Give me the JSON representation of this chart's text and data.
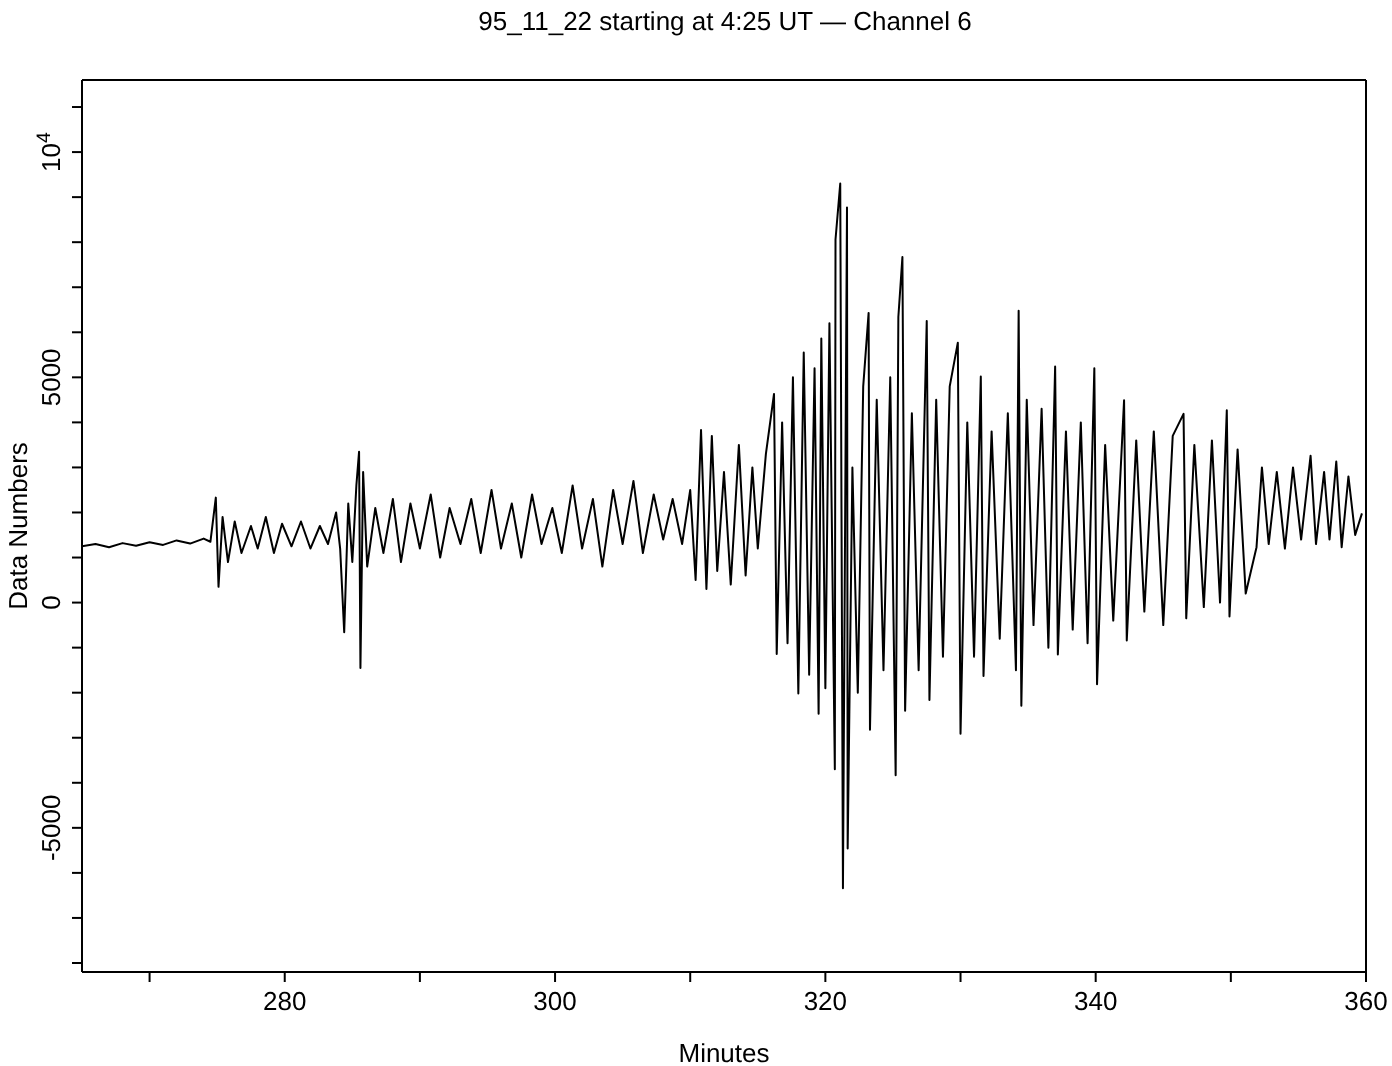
{
  "chart_data": {
    "type": "line",
    "title": "95_11_22 starting at 4:25 UT — Channel 6",
    "xlabel": "Minutes",
    "ylabel": "Data Numbers",
    "xlim": [
      265,
      360
    ],
    "xticks": [
      {
        "value": 270,
        "label": null
      },
      280,
      {
        "value": 290,
        "label": null
      },
      300,
      {
        "value": 310,
        "label": null
      },
      320,
      {
        "value": 330,
        "label": null
      },
      340,
      {
        "value": 350,
        "label": null
      },
      360
    ],
    "ylim": [
      -8200,
      11600
    ],
    "yticks": [
      {
        "value": -8000,
        "label": null
      },
      {
        "value": -7000,
        "label": null
      },
      {
        "value": -6000,
        "label": null
      },
      -5000,
      {
        "value": -4000,
        "label": null
      },
      {
        "value": -3000,
        "label": null
      },
      {
        "value": -2000,
        "label": null
      },
      {
        "value": -1000,
        "label": null
      },
      0,
      {
        "value": 1000,
        "label": null
      },
      {
        "value": 2000,
        "label": null
      },
      {
        "value": 3000,
        "label": null
      },
      {
        "value": 4000,
        "label": null
      },
      5000,
      {
        "value": 6000,
        "label": null
      },
      {
        "value": 7000,
        "label": null
      },
      {
        "value": 8000,
        "label": null
      },
      {
        "value": 9000,
        "label": null
      },
      {
        "value": 10000,
        "label": "10$^{4}$"
      },
      {
        "value": 11000,
        "label": null
      }
    ],
    "legend": false,
    "marker": "none",
    "line_style": "solid",
    "series": [
      {
        "color": "#000000",
        "x": [
          265,
          266,
          267,
          268,
          269,
          270,
          271,
          272,
          273,
          274,
          274.5,
          274.9,
          275.1,
          275.4,
          275.8,
          276.3,
          276.8,
          277.5,
          278,
          278.6,
          279.2,
          279.8,
          280.5,
          281.2,
          281.9,
          282.6,
          283.2,
          283.8,
          284.1,
          284.4,
          284.7,
          285,
          285.3,
          285.5,
          285.6,
          285.8,
          286.1,
          286.7,
          287.3,
          288,
          288.6,
          289.3,
          290,
          290.8,
          291.5,
          292.2,
          293,
          293.8,
          294.5,
          295.3,
          296,
          296.8,
          297.5,
          298.3,
          299,
          299.8,
          300.5,
          301.3,
          302,
          302.8,
          303.5,
          304.3,
          305,
          305.8,
          306.5,
          307.3,
          308,
          308.7,
          309.4,
          310,
          310.4,
          310.8,
          311.2,
          311.6,
          312,
          312.5,
          313,
          313.6,
          314.1,
          314.6,
          315,
          315.6,
          316.2,
          316.4,
          316.8,
          317.2,
          317.6,
          318,
          318.4,
          318.8,
          319.2,
          319.5,
          319.7,
          320,
          320.3,
          320.7,
          320.75,
          321.1,
          321.3,
          321.6,
          321.65,
          322,
          322.4,
          322.8,
          323.2,
          323.3,
          323.8,
          324.3,
          324.8,
          325.2,
          325.4,
          325.7,
          325.9,
          326.4,
          326.9,
          327.5,
          327.7,
          328.2,
          328.7,
          329.2,
          329.8,
          330,
          330.5,
          331,
          331.5,
          331.7,
          332.3,
          332.9,
          333.5,
          334.1,
          334.3,
          334.5,
          334.9,
          335.4,
          336,
          336.5,
          337,
          337.2,
          337.8,
          338.3,
          338.9,
          339.4,
          339.9,
          340.1,
          340.7,
          341.3,
          342.1,
          342.3,
          343,
          343.6,
          344.3,
          345,
          345.7,
          346.5,
          346.7,
          347.3,
          348,
          348.6,
          349.2,
          349.7,
          349.9,
          350.5,
          351.1,
          351.9,
          352.3,
          352.8,
          353.4,
          354,
          354.6,
          355.2,
          355.9,
          356.3,
          356.9,
          357.3,
          357.8,
          358.2,
          358.7,
          359.2,
          359.7
        ],
        "values": [
          1250,
          1300,
          1230,
          1320,
          1260,
          1340,
          1280,
          1380,
          1310,
          1420,
          1350,
          2330,
          350,
          1900,
          900,
          1800,
          1100,
          1700,
          1200,
          1900,
          1100,
          1750,
          1250,
          1800,
          1200,
          1700,
          1300,
          2000,
          1200,
          -660,
          2200,
          900,
          2600,
          3350,
          -1450,
          2900,
          800,
          2100,
          1100,
          2300,
          900,
          2200,
          1200,
          2400,
          1000,
          2100,
          1300,
          2300,
          1100,
          2500,
          1200,
          2200,
          1000,
          2400,
          1300,
          2100,
          1100,
          2600,
          1200,
          2300,
          800,
          2500,
          1300,
          2700,
          1100,
          2400,
          1400,
          2300,
          1300,
          2500,
          500,
          3830,
          300,
          3700,
          700,
          2900,
          400,
          3500,
          600,
          3000,
          1200,
          3300,
          4630,
          -1140,
          4000,
          -900,
          5000,
          -2020,
          5550,
          -1600,
          5200,
          -2470,
          5860,
          -1900,
          6200,
          -3700,
          8060,
          9300,
          -6340,
          8770,
          -5460,
          3000,
          -2000,
          4800,
          6430,
          -2820,
          4500,
          -1500,
          5000,
          -3830,
          6340,
          7670,
          -2400,
          4200,
          -1500,
          6250,
          -2160,
          4500,
          -1200,
          4800,
          5770,
          -2910,
          4000,
          -1200,
          5020,
          -1630,
          3800,
          -800,
          4200,
          -1500,
          6480,
          -2290,
          4500,
          -500,
          4300,
          -1000,
          5240,
          -1150,
          3800,
          -600,
          4000,
          -900,
          5200,
          -1810,
          3500,
          -400,
          4490,
          -840,
          3600,
          -200,
          3800,
          -500,
          3700,
          4190,
          -350,
          3500,
          -100,
          3600,
          0,
          4270,
          -310,
          3400,
          200,
          1230,
          3000,
          1300,
          2900,
          1200,
          3000,
          1400,
          3260,
          1300,
          2900,
          1400,
          3130,
          1230,
          2800,
          1500,
          1980
        ]
      }
    ]
  }
}
